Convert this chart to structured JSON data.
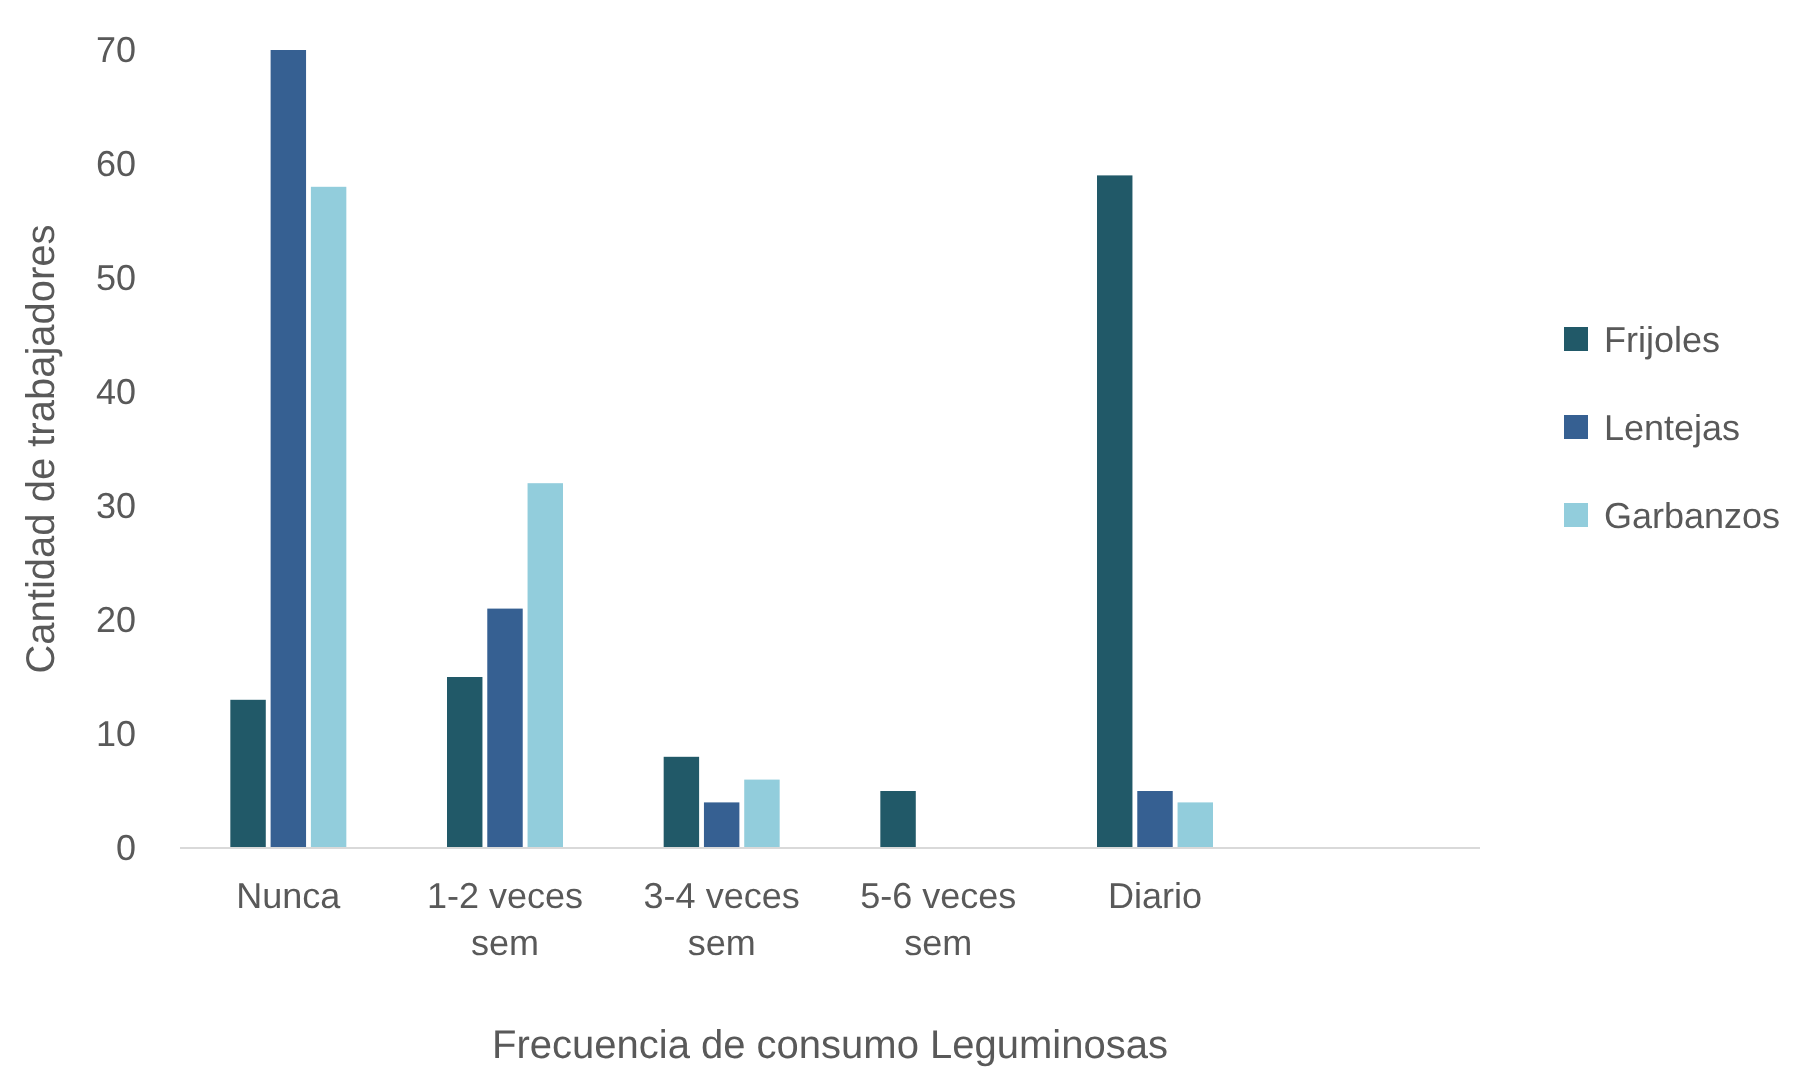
{
  "chart_data": {
    "type": "bar",
    "xlabel": "Frecuencia de consumo Leguminosas",
    "ylabel": "Cantidad de trabajadores",
    "categories": [
      "Nunca",
      "1-2 veces sem",
      "3-4 veces sem",
      "5-6 veces sem",
      "Diario",
      null
    ],
    "series": [
      {
        "name": "Frijoles",
        "color": "#215968",
        "values": [
          13,
          15,
          8,
          5,
          59,
          null
        ]
      },
      {
        "name": "Lentejas",
        "color": "#366092",
        "values": [
          70,
          21,
          4,
          null,
          5,
          null
        ]
      },
      {
        "name": "Garbanzos",
        "color": "#92cddc",
        "values": [
          58,
          32,
          6,
          null,
          4,
          null
        ]
      }
    ],
    "ylim": [
      0,
      70
    ],
    "yticks": [
      0,
      10,
      20,
      30,
      40,
      50,
      60,
      70
    ],
    "grid": false,
    "legend": "right"
  }
}
